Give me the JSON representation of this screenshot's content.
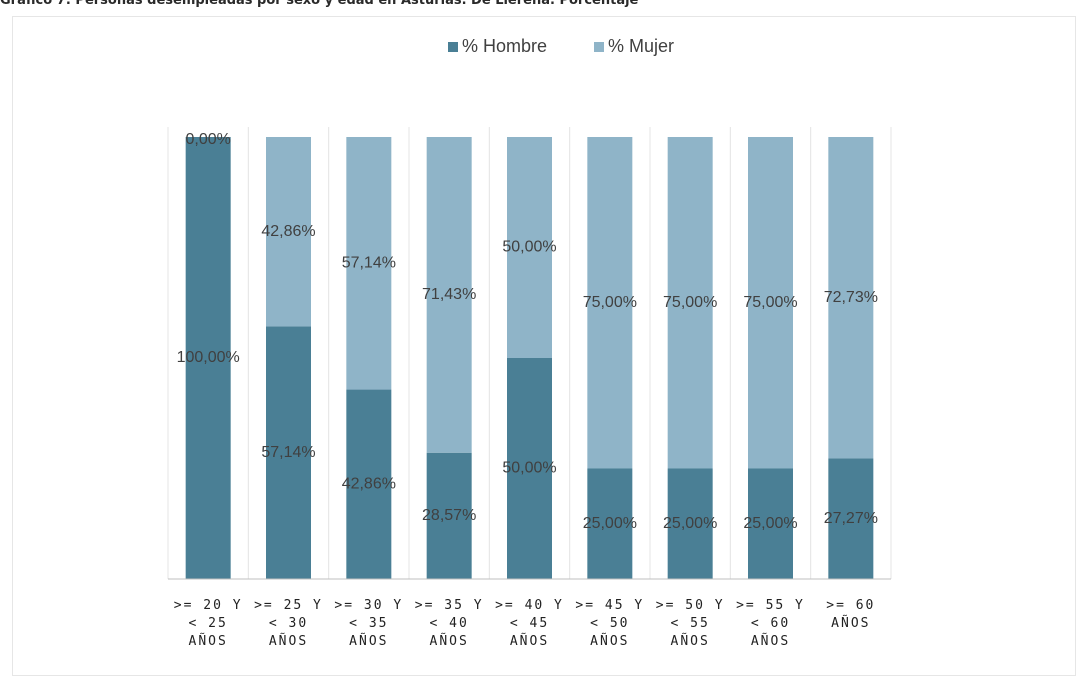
{
  "page": {
    "title": "Gráfico 7: Personas desempleadas por sexo y edad en Asturias. De Llerena. Porcentaje"
  },
  "chart_data": {
    "type": "bar",
    "stacked": true,
    "percent": true,
    "title": "",
    "xlabel": "",
    "ylabel": "",
    "ylim": [
      0,
      100
    ],
    "grid": false,
    "legend_position": "top",
    "categories": [
      ">= 20 Y < 25 AÑOS",
      ">= 25 Y < 30 AÑOS",
      ">= 30 Y < 35 AÑOS",
      ">= 35 Y < 40 AÑOS",
      ">= 40 Y < 45 AÑOS",
      ">= 45 Y < 50 AÑOS",
      ">= 50 Y < 55 AÑOS",
      ">= 55 Y < 60 AÑOS",
      ">= 60 AÑOS"
    ],
    "tick_lines": [
      [
        ">= 20 Y",
        "< 25",
        "AÑOS"
      ],
      [
        ">= 25 Y",
        "< 30",
        "AÑOS"
      ],
      [
        ">= 30 Y",
        "< 35",
        "AÑOS"
      ],
      [
        ">= 35 Y",
        "< 40",
        "AÑOS"
      ],
      [
        ">= 40 Y",
        "< 45",
        "AÑOS"
      ],
      [
        ">= 45 Y",
        "< 50",
        "AÑOS"
      ],
      [
        ">= 50 Y",
        "< 55",
        "AÑOS"
      ],
      [
        ">= 55 Y",
        "< 60",
        "AÑOS"
      ],
      [
        ">= 60",
        "AÑOS"
      ]
    ],
    "series": [
      {
        "name": "% Hombre",
        "color": "#4a7f95",
        "values": [
          100.0,
          57.14,
          42.86,
          28.57,
          50.0,
          25.0,
          25.0,
          25.0,
          27.27
        ],
        "labels": [
          "100,00%",
          "57,14%",
          "42,86%",
          "28,57%",
          "50,00%",
          "25,00%",
          "25,00%",
          "25,00%",
          "27,27%"
        ]
      },
      {
        "name": "% Mujer",
        "color": "#8fb4c8",
        "values": [
          0.0,
          42.86,
          57.14,
          71.43,
          50.0,
          75.0,
          75.0,
          75.0,
          72.73
        ],
        "labels": [
          "0,00%",
          "42,86%",
          "57,14%",
          "71,43%",
          "50,00%",
          "75,00%",
          "75,00%",
          "75,00%",
          "72,73%"
        ]
      }
    ]
  }
}
